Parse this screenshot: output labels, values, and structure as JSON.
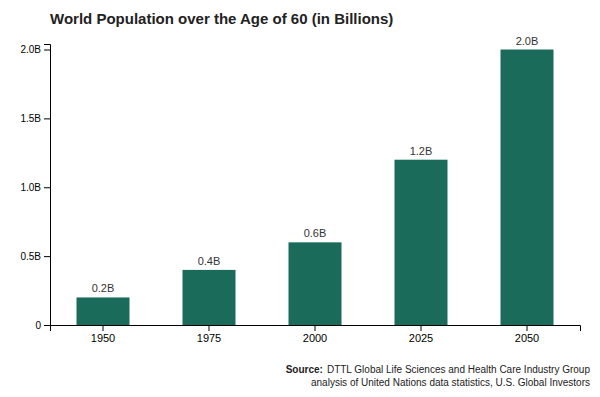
{
  "chart_data": {
    "type": "bar",
    "title": "World Population over the Age of 60 (in Billions)",
    "categories": [
      "1950",
      "1975",
      "2000",
      "2025",
      "2050"
    ],
    "values": [
      0.2,
      0.4,
      0.6,
      1.2,
      2.0
    ],
    "value_labels": [
      "0.2B",
      "0.4B",
      "0.6B",
      "1.2B",
      "2.0B"
    ],
    "data_labels": true,
    "color": "#1a6b5a",
    "ylim": [
      0,
      2.04
    ],
    "yticks": [
      0,
      {
        "value": 0.5,
        "label": "0.5B"
      },
      {
        "value": 1.0,
        "label": "1.0B"
      },
      {
        "value": 1.5,
        "label": "1.5B"
      },
      {
        "value": 2.0,
        "label": "2.0B"
      }
    ],
    "grid": false,
    "annotations": [
      "Source:",
      "DTTL Global Life Sciences and Health Care Industry Group",
      "analysis of United Nations data statistics, U.S. Global Investors"
    ]
  }
}
